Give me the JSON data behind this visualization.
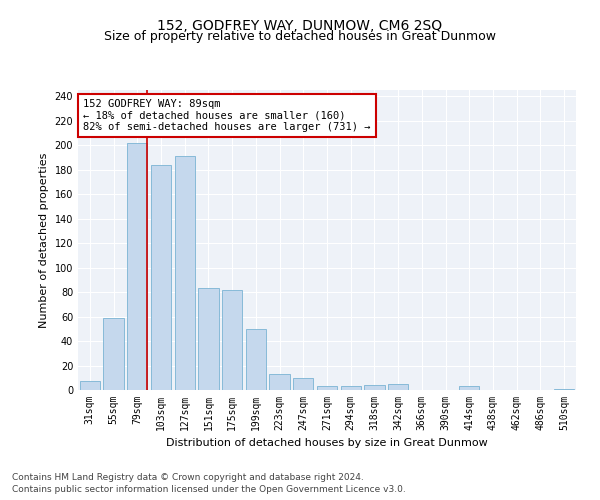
{
  "title": "152, GODFREY WAY, DUNMOW, CM6 2SQ",
  "subtitle": "Size of property relative to detached houses in Great Dunmow",
  "xlabel": "Distribution of detached houses by size in Great Dunmow",
  "ylabel": "Number of detached properties",
  "categories": [
    "31sqm",
    "55sqm",
    "79sqm",
    "103sqm",
    "127sqm",
    "151sqm",
    "175sqm",
    "199sqm",
    "223sqm",
    "247sqm",
    "271sqm",
    "294sqm",
    "318sqm",
    "342sqm",
    "366sqm",
    "390sqm",
    "414sqm",
    "438sqm",
    "462sqm",
    "486sqm",
    "510sqm"
  ],
  "values": [
    7,
    59,
    202,
    184,
    191,
    83,
    82,
    50,
    13,
    10,
    3,
    3,
    4,
    5,
    0,
    0,
    3,
    0,
    0,
    0,
    1
  ],
  "bar_color": "#c5d8ed",
  "bar_edge_color": "#7ab3d4",
  "property_label": "152 GODFREY WAY: 89sqm",
  "annotation_line1": "← 18% of detached houses are smaller (160)",
  "annotation_line2": "82% of semi-detached houses are larger (731) →",
  "vline_color": "#cc0000",
  "vline_bar_index": 2,
  "ylim": [
    0,
    245
  ],
  "yticks": [
    0,
    20,
    40,
    60,
    80,
    100,
    120,
    140,
    160,
    180,
    200,
    220,
    240
  ],
  "background_color": "#eef2f8",
  "grid_color": "#ffffff",
  "footer_line1": "Contains HM Land Registry data © Crown copyright and database right 2024.",
  "footer_line2": "Contains public sector information licensed under the Open Government Licence v3.0.",
  "title_fontsize": 10,
  "subtitle_fontsize": 9,
  "axis_label_fontsize": 8,
  "tick_fontsize": 7,
  "annotation_fontsize": 7.5,
  "footer_fontsize": 6.5
}
